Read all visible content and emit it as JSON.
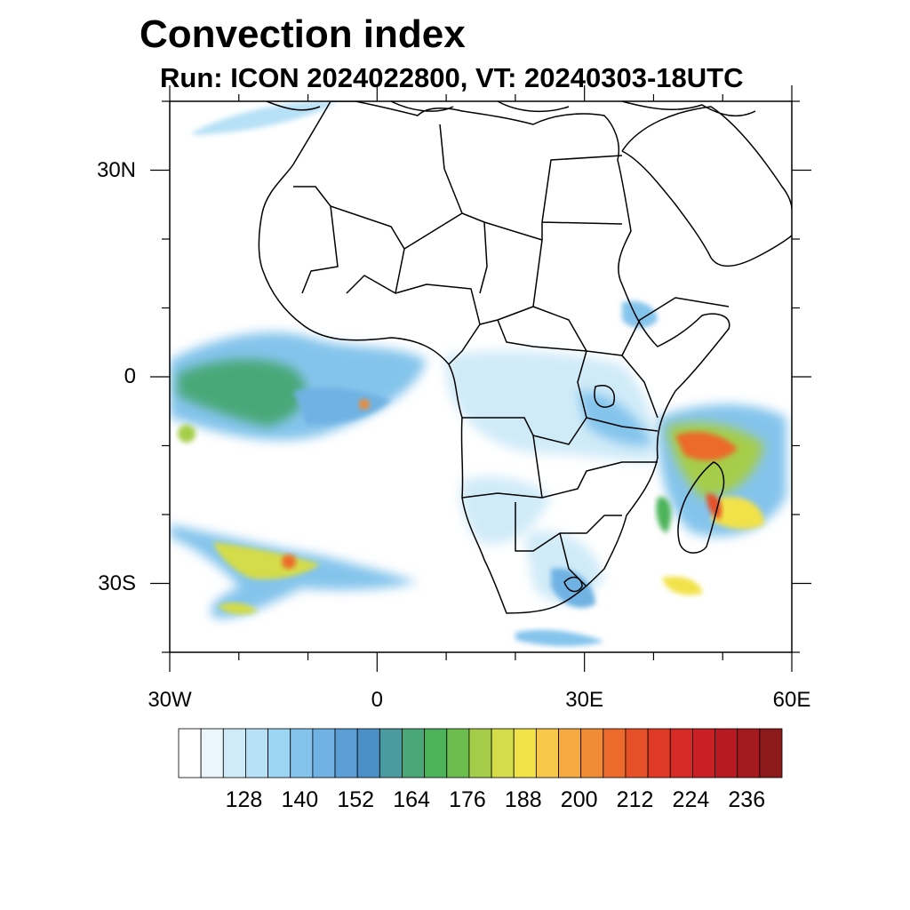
{
  "title": "Convection index",
  "subtitle": "Run: ICON 2024022800,  VT: 20240303-18UTC",
  "map": {
    "lon_range": [
      -30,
      60
    ],
    "lat_range": [
      -40,
      40
    ],
    "lat_ticks": [
      {
        "value": 30,
        "label": "30N"
      },
      {
        "value": 0,
        "label": "0"
      },
      {
        "value": -30,
        "label": "30S"
      }
    ],
    "lon_ticks": [
      {
        "value": -30,
        "label": "30W"
      },
      {
        "value": 0,
        "label": "0"
      },
      {
        "value": 30,
        "label": "30E"
      },
      {
        "value": 60,
        "label": "60E"
      }
    ]
  },
  "colorbar": {
    "colors": [
      "#ffffff",
      "#eaf6fc",
      "#d0ebf8",
      "#b7e1f6",
      "#9cd6f4",
      "#84c4ec",
      "#6fb2e3",
      "#5a9ed5",
      "#4a8fc5",
      "#4a9aa0",
      "#4aa878",
      "#4cb35a",
      "#6cbc4e",
      "#a6cd4a",
      "#d4dc4a",
      "#f2e24a",
      "#f8c848",
      "#f5a940",
      "#f08c36",
      "#ec6a2c",
      "#e65028",
      "#de3a26",
      "#d52a26",
      "#c92026",
      "#b81a22",
      "#a41a1e",
      "#8c1a1a"
    ],
    "labels": [
      "128",
      "140",
      "152",
      "164",
      "176",
      "188",
      "200",
      "212",
      "224",
      "236"
    ]
  }
}
